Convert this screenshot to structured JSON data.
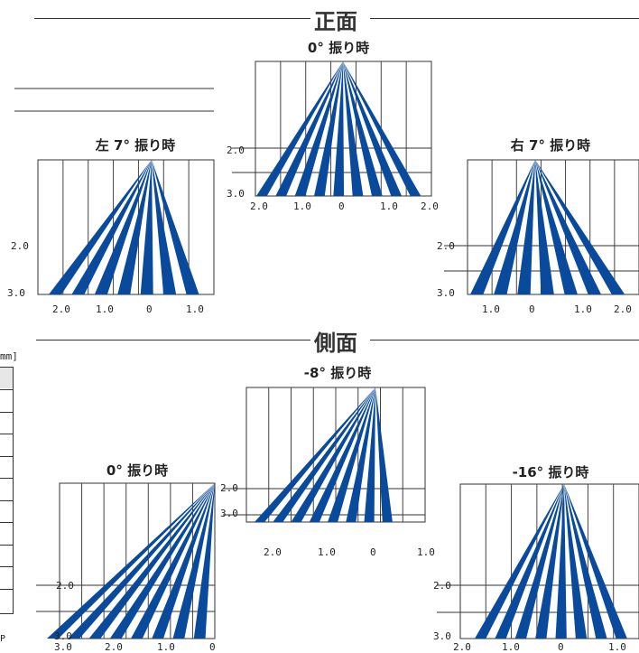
{
  "sections": {
    "front": {
      "title": "正面"
    },
    "side": {
      "title": "側面"
    }
  },
  "panels": [
    {
      "id": "front-left-7",
      "title": "左 7° 振り時",
      "y_labels": [
        "2.0",
        "3.0"
      ],
      "x_labels": [
        "2.0",
        "1.0",
        "0",
        "1.0"
      ]
    },
    {
      "id": "front-center-0",
      "title": "0° 振り時",
      "y_labels": [
        "2.0",
        "3.0"
      ],
      "x_labels": [
        "2.0",
        "1.0",
        "0",
        "1.0",
        "2.0"
      ]
    },
    {
      "id": "front-right-7",
      "title": "右 7° 振り時",
      "y_labels": [
        "2.0",
        "3.0"
      ],
      "x_labels": [
        "1.0",
        "0",
        "1.0",
        "2.0"
      ]
    },
    {
      "id": "side-0",
      "title": "0° 振り時",
      "y_labels": [
        "2.0",
        "3.0"
      ],
      "x_labels": [
        "3.0",
        "2.0",
        "1.0",
        "0"
      ]
    },
    {
      "id": "side-minus8",
      "title": "-8° 振り時",
      "y_labels": [
        "2.0",
        "3.0"
      ],
      "x_labels": [
        "2.0",
        "1.0",
        "0",
        "1.0"
      ]
    },
    {
      "id": "side-minus16",
      "title": "-16° 振り時",
      "y_labels": [
        "2.0",
        "3.0"
      ],
      "x_labels": [
        "2.0",
        "1.0",
        "0",
        "1.0"
      ]
    }
  ],
  "side_table": {
    "unit": "mm]"
  },
  "beam_color": "#0a4a9c"
}
